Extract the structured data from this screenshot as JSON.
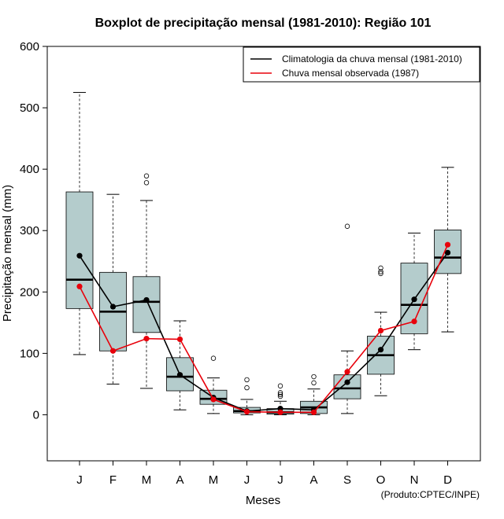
{
  "chart_data": {
    "type": "boxplot",
    "title": "Boxplot de precipitação mensal (1981-2010): Região 101",
    "xlabel": "Meses",
    "ylabel": "Precipitação mensal (mm)",
    "credit": "(Produto:CPTEC/INPE)",
    "ylim": [
      -75,
      600
    ],
    "yticks": [
      0,
      100,
      200,
      300,
      400,
      500,
      600
    ],
    "categories": [
      "J",
      "F",
      "M",
      "A",
      "M",
      "J",
      "J",
      "A",
      "S",
      "O",
      "N",
      "D"
    ],
    "box_color": "#b4cccc",
    "boxes": [
      {
        "whisker_low": 98,
        "q1": 173,
        "median": 220,
        "q3": 363,
        "whisker_high": 525,
        "outliers": []
      },
      {
        "whisker_low": 50,
        "q1": 104,
        "median": 168,
        "q3": 232,
        "whisker_high": 359,
        "outliers": []
      },
      {
        "whisker_low": 43,
        "q1": 134,
        "median": 184,
        "q3": 225,
        "whisker_high": 349,
        "outliers": [
          378,
          389
        ]
      },
      {
        "whisker_low": 8,
        "q1": 39,
        "median": 62,
        "q3": 93,
        "whisker_high": 153,
        "outliers": []
      },
      {
        "whisker_low": 2,
        "q1": 17,
        "median": 26,
        "q3": 40,
        "whisker_high": 60,
        "outliers": [
          92
        ]
      },
      {
        "whisker_low": 0,
        "q1": 3,
        "median": 6,
        "q3": 12,
        "whisker_high": 25,
        "outliers": [
          44,
          57
        ]
      },
      {
        "whisker_low": 0,
        "q1": 1,
        "median": 4,
        "q3": 10,
        "whisker_high": 22,
        "outliers": [
          30,
          33,
          36,
          47
        ]
      },
      {
        "whisker_low": 0,
        "q1": 2,
        "median": 12,
        "q3": 22,
        "whisker_high": 42,
        "outliers": [
          52,
          62
        ]
      },
      {
        "whisker_low": 2,
        "q1": 26,
        "median": 43,
        "q3": 65,
        "whisker_high": 104,
        "outliers": [
          307
        ]
      },
      {
        "whisker_low": 31,
        "q1": 66,
        "median": 97,
        "q3": 128,
        "whisker_high": 167,
        "outliers": [
          230,
          233,
          239
        ]
      },
      {
        "whisker_low": 106,
        "q1": 132,
        "median": 179,
        "q3": 247,
        "whisker_high": 296,
        "outliers": []
      },
      {
        "whisker_low": 135,
        "q1": 230,
        "median": 256,
        "q3": 301,
        "whisker_high": 403,
        "outliers": []
      }
    ],
    "series": [
      {
        "name": "Climatologia da chuva mensal (1981-2010)",
        "color": "#000000",
        "values": [
          259,
          176,
          187,
          65,
          28,
          6,
          10,
          8,
          53,
          106,
          188,
          264
        ]
      },
      {
        "name": "Chuva mensal observada (1987)",
        "color": "#e8000b",
        "values": [
          209,
          104,
          124,
          123,
          25,
          5,
          4,
          4,
          70,
          137,
          152,
          277
        ]
      }
    ],
    "legend_position": "top-right"
  }
}
